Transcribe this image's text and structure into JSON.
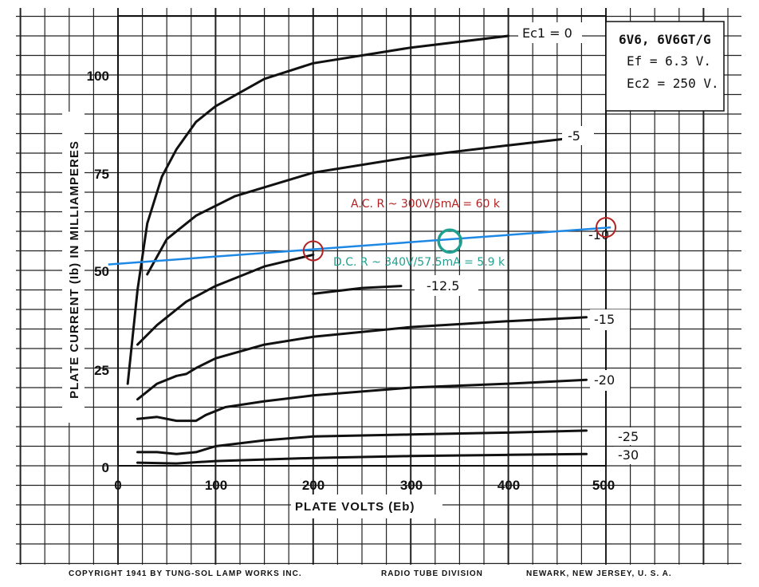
{
  "chart_data": {
    "type": "line",
    "xlabel": "PLATE VOLTS (Eb)",
    "ylabel": "PLATE CURRENT (Ib) IN MILLIAMPERES",
    "xlim": [
      0,
      500
    ],
    "ylim": [
      0,
      110
    ],
    "x_ticks": [
      "0",
      "100",
      "200",
      "300",
      "400",
      "500"
    ],
    "y_ticks": [
      "0",
      "25",
      "50",
      "75",
      "100"
    ],
    "grid": true,
    "spec_box": {
      "tube": "6V6, 6V6GT/G",
      "ef": "Ef = 6.3 V.",
      "ec2": "Ec2 = 250 V."
    },
    "series": [
      {
        "name": "Ec1 = 0",
        "label": "Ec1 = 0",
        "points": [
          [
            10,
            21
          ],
          [
            20,
            45
          ],
          [
            30,
            62
          ],
          [
            45,
            74
          ],
          [
            60,
            81
          ],
          [
            80,
            88
          ],
          [
            100,
            92
          ],
          [
            150,
            99
          ],
          [
            200,
            103
          ],
          [
            300,
            107
          ],
          [
            400,
            110
          ]
        ]
      },
      {
        "name": "-5",
        "label": "-5",
        "points": [
          [
            30,
            49
          ],
          [
            50,
            58
          ],
          [
            80,
            64
          ],
          [
            120,
            69
          ],
          [
            200,
            75
          ],
          [
            300,
            79
          ],
          [
            400,
            82
          ],
          [
            470,
            84
          ]
        ]
      },
      {
        "name": "-10",
        "label": "-10",
        "points": [
          [
            20,
            31
          ],
          [
            40,
            36
          ],
          [
            70,
            42
          ],
          [
            100,
            46
          ],
          [
            150,
            51
          ],
          [
            200,
            54
          ]
        ]
      },
      {
        "name": "-12.5",
        "label": "-12.5",
        "points": [
          [
            200,
            44
          ],
          [
            250,
            45.5
          ],
          [
            290,
            46
          ]
        ]
      },
      {
        "name": "-15",
        "label": "-15",
        "points": [
          [
            20,
            17
          ],
          [
            40,
            21
          ],
          [
            60,
            23
          ],
          [
            70,
            23.5
          ],
          [
            80,
            25
          ],
          [
            100,
            27.5
          ],
          [
            150,
            31
          ],
          [
            200,
            33
          ],
          [
            300,
            35.5
          ],
          [
            400,
            37
          ],
          [
            480,
            38
          ]
        ]
      },
      {
        "name": "-20",
        "label": "-20",
        "points": [
          [
            20,
            12
          ],
          [
            40,
            12.5
          ],
          [
            60,
            11.5
          ],
          [
            80,
            11.5
          ],
          [
            90,
            13
          ],
          [
            110,
            15
          ],
          [
            150,
            16.5
          ],
          [
            200,
            18
          ],
          [
            300,
            20
          ],
          [
            400,
            21
          ],
          [
            480,
            22
          ]
        ]
      },
      {
        "name": "-25",
        "label": "-25",
        "points": [
          [
            20,
            3.5
          ],
          [
            40,
            3.5
          ],
          [
            60,
            3
          ],
          [
            80,
            3.5
          ],
          [
            100,
            5
          ],
          [
            150,
            6.5
          ],
          [
            200,
            7.5
          ],
          [
            300,
            8
          ],
          [
            400,
            8.5
          ],
          [
            480,
            9
          ]
        ]
      },
      {
        "name": "-30",
        "label": "-30",
        "points": [
          [
            20,
            0.8
          ],
          [
            60,
            0.6
          ],
          [
            100,
            1.2
          ],
          [
            200,
            2
          ],
          [
            300,
            2.5
          ],
          [
            400,
            2.8
          ],
          [
            480,
            3
          ]
        ]
      }
    ],
    "load_line": {
      "start": [
        -10,
        51.5
      ],
      "end": [
        505,
        61
      ]
    },
    "markers": [
      {
        "kind": "ac",
        "x": 200,
        "y": 55
      },
      {
        "kind": "ac",
        "x": 500,
        "y": 61
      },
      {
        "kind": "dc",
        "x": 340,
        "y": 57.5
      }
    ],
    "annotations": {
      "ac": "A.C. R ~ 300V/5mA = 60 k",
      "dc": "D.C. R ~ 340V/57.5mA = 5.9 k"
    },
    "colors": {
      "curve": "#111111",
      "grid": "#222222",
      "load_line": "#1e88e5",
      "ac_marker": "#b22222",
      "dc_marker": "#20a090"
    }
  },
  "footer": {
    "copyright": "COPYRIGHT 1941 BY TUNG-SOL LAMP WORKS INC.",
    "division": "RADIO TUBE DIVISION",
    "location": "NEWARK, NEW JERSEY, U. S. A."
  }
}
